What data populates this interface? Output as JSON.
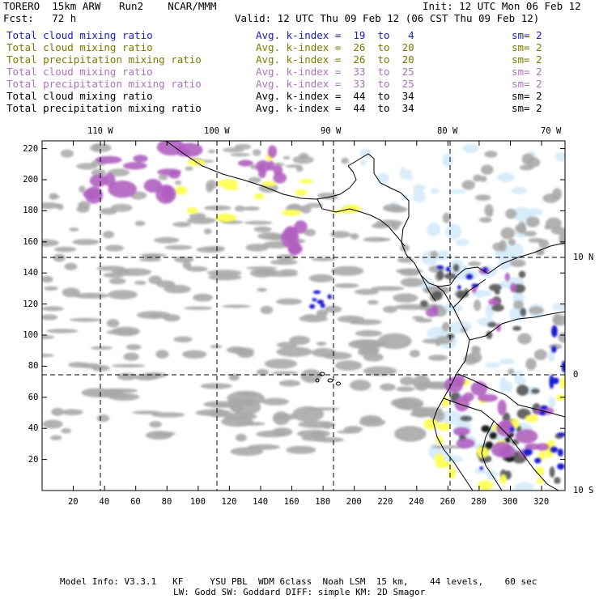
{
  "header": {
    "model": "TORERO  15km ARW   Run2    NCAR/MMM",
    "init": "Init: 12 UTC Mon 06 Feb 12",
    "fcst": "Fcst:   72 h",
    "valid": "Valid: 12 UTC Thu 09 Feb 12 (06 CST Thu 09 Feb 12)"
  },
  "legend": [
    {
      "field": "Total cloud mixing ratio",
      "index": "Avg. k-index =  19  to   4",
      "sm": "sm= 2",
      "color": "#1a1ad0"
    },
    {
      "field": "Total cloud mixing ratio",
      "index": "Avg. k-index =  26  to  20",
      "sm": "sm= 2",
      "color": "#7a7a00"
    },
    {
      "field": "Total precipitation mixing ratio",
      "index": "Avg. k-index =  26  to  20",
      "sm": "sm= 2",
      "color": "#7a7a00"
    },
    {
      "field": "Total cloud mixing ratio",
      "index": "Avg. k-index =  33  to  25",
      "sm": "sm= 2",
      "color": "#b070c0"
    },
    {
      "field": "Total precipitation mixing ratio",
      "index": "Avg. k-index =  33  to  25",
      "sm": "sm= 2",
      "color": "#b070c0"
    },
    {
      "field": "Total cloud mixing ratio",
      "index": "Avg. k-index =  44  to  34",
      "sm": "sm= 2",
      "color": "#000000"
    },
    {
      "field": "Total precipitation mixing ratio",
      "index": "Avg. k-index =  44  to  34",
      "sm": "sm= 2",
      "color": "#000000"
    }
  ],
  "axes": {
    "lon_labels": [
      "110 W",
      "100 W",
      "90 W",
      "80 W",
      "70 W"
    ],
    "lat_labels": [
      "10 N",
      "0",
      "10 S"
    ],
    "x_ticks": [
      "20",
      "40",
      "60",
      "80",
      "100",
      "120",
      "140",
      "160",
      "180",
      "200",
      "220",
      "240",
      "260",
      "280",
      "300",
      "320"
    ],
    "y_ticks": [
      "220",
      "200",
      "180",
      "160",
      "140",
      "120",
      "100",
      "80",
      "60",
      "40",
      "20"
    ],
    "x_range": [
      0,
      335
    ],
    "y_range": [
      0,
      225
    ]
  },
  "colors": {
    "cloud_gray": "#a8a8a8",
    "dark_gray": "#555555",
    "black_core": "#1a1a1a",
    "yellow": "#ffff55",
    "violet": "#b060c0",
    "light_blue": "#d8ecfa",
    "blue": "#1a1ad0",
    "coast": "#000000"
  },
  "footer": {
    "line1": "Model Info: V3.3.1   KF     YSU PBL  WDM 6class  Noah LSM  15 km,    44 levels,    60 sec",
    "line2": "LW: Godd SW: Goddard DIFF: simple KM: 2D Smagor"
  }
}
